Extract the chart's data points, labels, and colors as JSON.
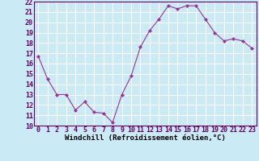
{
  "x": [
    0,
    1,
    2,
    3,
    4,
    5,
    6,
    7,
    8,
    9,
    10,
    11,
    12,
    13,
    14,
    15,
    16,
    17,
    18,
    19,
    20,
    21,
    22,
    23
  ],
  "y": [
    16.7,
    14.5,
    13.0,
    13.0,
    11.5,
    12.3,
    11.3,
    11.2,
    10.3,
    13.0,
    14.8,
    17.6,
    19.2,
    20.3,
    21.6,
    21.3,
    21.6,
    21.6,
    20.3,
    19.0,
    18.2,
    18.4,
    18.2,
    17.5
  ],
  "line_color": "#993399",
  "marker": "D",
  "marker_size": 2.0,
  "bg_color": "#caeaf5",
  "grid_color": "#ffffff",
  "xlabel": "Windchill (Refroidissement éolien,°C)",
  "xlabel_fontsize": 6.5,
  "tick_fontsize": 6.0,
  "ylim": [
    10,
    22
  ],
  "yticks": [
    10,
    11,
    12,
    13,
    14,
    15,
    16,
    17,
    18,
    19,
    20,
    21,
    22
  ],
  "xticks": [
    0,
    1,
    2,
    3,
    4,
    5,
    6,
    7,
    8,
    9,
    10,
    11,
    12,
    13,
    14,
    15,
    16,
    17,
    18,
    19,
    20,
    21,
    22,
    23
  ]
}
